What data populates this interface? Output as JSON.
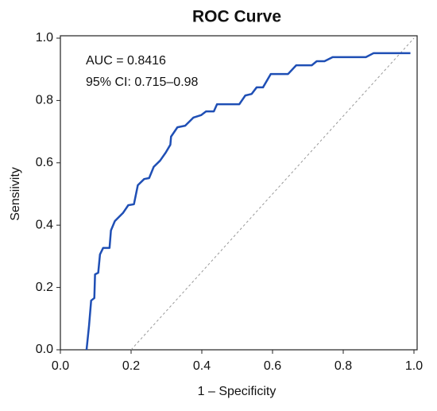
{
  "chart_data": {
    "type": "line",
    "title": "ROC Curve",
    "xlabel": "1 – Specificity",
    "ylabel": "Sensiivity",
    "annotations": [
      "AUC = 0.8416",
      "95% CI: 0.715–0.98"
    ],
    "series": [
      {
        "color": "#1f4fb5",
        "x": [
          0.074,
          0.081,
          0.087,
          0.096,
          0.098,
          0.107,
          0.112,
          0.121,
          0.139,
          0.143,
          0.154,
          0.177,
          0.192,
          0.208,
          0.219,
          0.237,
          0.251,
          0.264,
          0.282,
          0.298,
          0.311,
          0.313,
          0.331,
          0.353,
          0.376,
          0.398,
          0.412,
          0.434,
          0.443,
          0.506,
          0.523,
          0.541,
          0.555,
          0.573,
          0.595,
          0.644,
          0.667,
          0.711,
          0.725,
          0.747,
          0.77,
          0.864,
          0.886,
          0.99
        ],
        "values": [
          0,
          0.077,
          0.158,
          0.166,
          0.242,
          0.247,
          0.306,
          0.327,
          0.327,
          0.383,
          0.413,
          0.439,
          0.464,
          0.467,
          0.528,
          0.548,
          0.551,
          0.587,
          0.607,
          0.633,
          0.658,
          0.684,
          0.714,
          0.719,
          0.745,
          0.753,
          0.765,
          0.765,
          0.788,
          0.788,
          0.816,
          0.821,
          0.842,
          0.842,
          0.885,
          0.885,
          0.913,
          0.913,
          0.926,
          0.926,
          0.939,
          0.939,
          0.952,
          0.952
        ]
      }
    ],
    "reference_line": {
      "x": [
        0.2,
        1
      ],
      "y": [
        0,
        1
      ],
      "color": "#999999"
    },
    "xlim": [
      0,
      1
    ],
    "ylim": [
      0,
      1
    ],
    "xticks": [
      {
        "value": 0,
        "label": "0.0"
      },
      0.2,
      0.4,
      0.6,
      0.8,
      {
        "value": 1,
        "label": "1.0"
      }
    ],
    "yticks": [
      {
        "value": 0,
        "label": "0.0"
      },
      0.2,
      0.4,
      0.6,
      0.8,
      {
        "value": 1,
        "label": "1.0"
      }
    ]
  }
}
